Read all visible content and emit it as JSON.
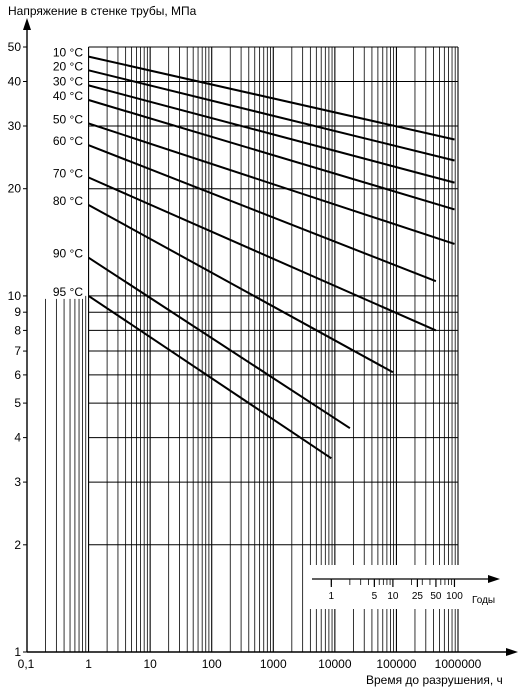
{
  "chart_data": {
    "type": "line",
    "ylabel": "Напряжение в стенке трубы, МПа",
    "xlabel": "Время до разрушения, ч",
    "x_scale": "log",
    "y_scale": "log",
    "xlim": [
      0.1,
      1000000
    ],
    "ylim": [
      1,
      50
    ],
    "grid": true,
    "x_ticks": [
      {
        "value": 0.1,
        "label": "0,1"
      },
      {
        "value": 1,
        "label": "1"
      },
      {
        "value": 10,
        "label": "10"
      },
      {
        "value": 100,
        "label": "100"
      },
      {
        "value": 1000,
        "label": "1000"
      },
      {
        "value": 10000,
        "label": "10000"
      },
      {
        "value": 100000,
        "label": "100000"
      },
      {
        "value": 1000000,
        "label": "1000000"
      }
    ],
    "y_ticks": [
      {
        "value": 1,
        "label": "1"
      },
      {
        "value": 2,
        "label": "2"
      },
      {
        "value": 3,
        "label": "3"
      },
      {
        "value": 4,
        "label": "4"
      },
      {
        "value": 5,
        "label": "5"
      },
      {
        "value": 6,
        "label": "6"
      },
      {
        "value": 7,
        "label": "7"
      },
      {
        "value": 8,
        "label": "8"
      },
      {
        "value": 9,
        "label": "9"
      },
      {
        "value": 10,
        "label": "10"
      },
      {
        "value": 20,
        "label": "20"
      },
      {
        "value": 30,
        "label": "30"
      },
      {
        "value": 40,
        "label": "40"
      },
      {
        "value": 50,
        "label": "50"
      }
    ],
    "years_axis": {
      "label": "Годы",
      "ticks": [
        {
          "years": 1,
          "label": "1"
        },
        {
          "years": 5,
          "label": "5"
        },
        {
          "years": 10,
          "label": "10"
        },
        {
          "years": 25,
          "label": "25"
        },
        {
          "years": 50,
          "label": "50"
        },
        {
          "years": 100,
          "label": "100"
        }
      ]
    },
    "series": [
      {
        "name": "10 °C",
        "points": [
          [
            1,
            47
          ],
          [
            876000,
            27.5
          ]
        ]
      },
      {
        "name": "20 °C",
        "points": [
          [
            1,
            43
          ],
          [
            876000,
            24
          ]
        ]
      },
      {
        "name": "30 °C",
        "points": [
          [
            1,
            39
          ],
          [
            876000,
            20.8
          ]
        ]
      },
      {
        "name": "40 °C",
        "points": [
          [
            1,
            35.5
          ],
          [
            876000,
            17.5
          ]
        ]
      },
      {
        "name": "50 °C",
        "points": [
          [
            1,
            30.5
          ],
          [
            876000,
            14
          ]
        ]
      },
      {
        "name": "60 °C",
        "points": [
          [
            1,
            26.5
          ],
          [
            438000,
            11
          ]
        ]
      },
      {
        "name": "70 °C",
        "points": [
          [
            1,
            21.5
          ],
          [
            438000,
            8
          ]
        ]
      },
      {
        "name": "80 °C",
        "points": [
          [
            1,
            18
          ],
          [
            87600,
            6.1
          ]
        ]
      },
      {
        "name": "90 °C",
        "points": [
          [
            1,
            12.8
          ],
          [
            17520,
            4.25
          ]
        ]
      },
      {
        "name": "95 °C",
        "points": [
          [
            1,
            10
          ],
          [
            8760,
            3.5
          ]
        ]
      }
    ]
  }
}
